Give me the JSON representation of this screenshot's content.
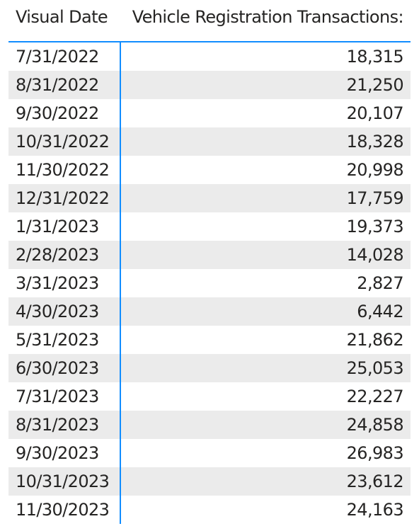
{
  "table": {
    "headers": {
      "date": "Visual Date",
      "value": "Vehicle Registration Transactions:"
    },
    "accent_color": "#118DFF",
    "band_color": "#EBEBEB"
  },
  "chart_data": {
    "type": "table",
    "columns": [
      "Visual Date",
      "Vehicle Registration Transactions:"
    ],
    "rows": [
      {
        "date": "7/31/2022",
        "value": "18,315"
      },
      {
        "date": "8/31/2022",
        "value": "21,250"
      },
      {
        "date": "9/30/2022",
        "value": "20,107"
      },
      {
        "date": "10/31/2022",
        "value": "18,328"
      },
      {
        "date": "11/30/2022",
        "value": "20,998"
      },
      {
        "date": "12/31/2022",
        "value": "17,759"
      },
      {
        "date": "1/31/2023",
        "value": "19,373"
      },
      {
        "date": "2/28/2023",
        "value": "14,028"
      },
      {
        "date": "3/31/2023",
        "value": "2,827"
      },
      {
        "date": "4/30/2023",
        "value": "6,442"
      },
      {
        "date": "5/31/2023",
        "value": "21,862"
      },
      {
        "date": "6/30/2023",
        "value": "25,053"
      },
      {
        "date": "7/31/2023",
        "value": "22,227"
      },
      {
        "date": "8/31/2023",
        "value": "24,858"
      },
      {
        "date": "9/30/2023",
        "value": "26,983"
      },
      {
        "date": "10/31/2023",
        "value": "23,612"
      },
      {
        "date": "11/30/2023",
        "value": "24,163"
      }
    ]
  }
}
